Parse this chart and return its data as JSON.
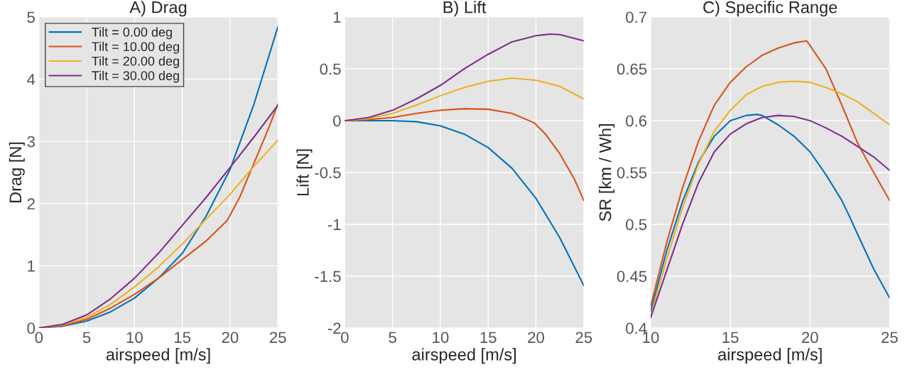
{
  "chart_data": [
    {
      "type": "line",
      "title": "A) Drag",
      "xlabel": "airspeed [m/s]",
      "ylabel": "Drag [N]",
      "xlim": [
        0,
        25
      ],
      "ylim": [
        0,
        5
      ],
      "xticks": [
        0,
        5,
        10,
        15,
        20,
        25
      ],
      "yticks": [
        0,
        1,
        2,
        3,
        4,
        5
      ],
      "grid": true,
      "legend": "top left",
      "line_style": "solid",
      "marker": "none",
      "series": [
        {
          "name": "Tilt = 0.00 deg",
          "color": "#0072bd",
          "x": [
            0,
            2.5,
            5,
            7.5,
            10,
            12.5,
            15,
            17.5,
            20,
            22.5,
            25
          ],
          "values": [
            0,
            0.03,
            0.11,
            0.26,
            0.48,
            0.8,
            1.2,
            1.8,
            2.55,
            3.6,
            4.84
          ]
        },
        {
          "name": "Tilt = 10.00 deg",
          "color": "#d95319",
          "x": [
            0,
            2.5,
            5,
            7.5,
            10,
            12.5,
            15,
            17.5,
            19.7,
            21,
            22.5,
            24,
            25
          ],
          "values": [
            0,
            0.04,
            0.14,
            0.32,
            0.54,
            0.8,
            1.1,
            1.4,
            1.73,
            2.1,
            2.65,
            3.2,
            3.6
          ]
        },
        {
          "name": "Tilt = 20.00 deg",
          "color": "#edb120",
          "x": [
            0,
            2.5,
            5,
            7.5,
            10,
            12.5,
            15,
            17.5,
            20,
            22.5,
            25
          ],
          "values": [
            0,
            0.05,
            0.17,
            0.38,
            0.66,
            0.98,
            1.35,
            1.75,
            2.15,
            2.6,
            3.02
          ]
        },
        {
          "name": "Tilt = 30.00 deg",
          "color": "#7e2f8e",
          "x": [
            0,
            2.5,
            5,
            7.5,
            10,
            12.5,
            15,
            17.5,
            20,
            22.5,
            25
          ],
          "values": [
            0,
            0.06,
            0.21,
            0.47,
            0.8,
            1.2,
            1.65,
            2.1,
            2.58,
            3.07,
            3.58
          ]
        }
      ]
    },
    {
      "type": "line",
      "title": "B) Lift",
      "xlabel": "airspeed [m/s]",
      "ylabel": "Lift [N]",
      "xlim": [
        0,
        25
      ],
      "ylim": [
        -2,
        1
      ],
      "xticks": [
        0,
        5,
        10,
        15,
        20,
        25
      ],
      "yticks": [
        -2,
        -1.5,
        -1,
        -0.5,
        0,
        0.5,
        1
      ],
      "grid": true,
      "line_style": "solid",
      "marker": "none",
      "series": [
        {
          "color": "#0072bd",
          "x": [
            0,
            2.5,
            5,
            7.5,
            10,
            12.5,
            15,
            17.5,
            20,
            22.5,
            25
          ],
          "values": [
            0,
            0,
            0,
            -0.01,
            -0.05,
            -0.13,
            -0.26,
            -0.46,
            -0.75,
            -1.13,
            -1.59
          ]
        },
        {
          "color": "#d95319",
          "x": [
            0,
            2.5,
            5,
            7.5,
            10,
            12.5,
            15,
            17.5,
            19.8,
            21,
            22.5,
            24,
            25
          ],
          "values": [
            0,
            0.01,
            0.03,
            0.07,
            0.1,
            0.115,
            0.11,
            0.07,
            -0.02,
            -0.13,
            -0.32,
            -0.56,
            -0.77
          ]
        },
        {
          "color": "#edb120",
          "x": [
            0,
            2.5,
            5,
            7.5,
            10,
            12.5,
            15,
            17.5,
            20,
            22.5,
            25
          ],
          "values": [
            0,
            0.02,
            0.07,
            0.15,
            0.24,
            0.32,
            0.38,
            0.41,
            0.39,
            0.33,
            0.21
          ]
        },
        {
          "color": "#7e2f8e",
          "x": [
            0,
            2.5,
            5,
            7.5,
            10,
            12.5,
            15,
            17.5,
            20,
            21.5,
            22.5,
            25
          ],
          "values": [
            0,
            0.03,
            0.1,
            0.21,
            0.34,
            0.5,
            0.64,
            0.76,
            0.82,
            0.835,
            0.83,
            0.77
          ]
        }
      ]
    },
    {
      "type": "line",
      "title": "C) Specific Range",
      "xlabel": "airspeed [m/s]",
      "ylabel": "SR [km / Wh]",
      "xlim": [
        10,
        25
      ],
      "ylim": [
        0.4,
        0.7
      ],
      "xticks": [
        10,
        15,
        20,
        25
      ],
      "yticks": [
        0.4,
        0.45,
        0.5,
        0.55,
        0.6,
        0.65,
        0.7
      ],
      "grid": true,
      "line_style": "solid",
      "marker": "none",
      "series": [
        {
          "color": "#0072bd",
          "x": [
            10,
            11,
            12,
            13,
            14,
            15,
            16,
            16.7,
            17,
            18,
            19,
            20,
            21,
            22,
            22.5,
            23,
            24,
            25
          ],
          "values": [
            0.416,
            0.474,
            0.522,
            0.56,
            0.585,
            0.6,
            0.605,
            0.606,
            0.605,
            0.596,
            0.585,
            0.57,
            0.548,
            0.523,
            0.507,
            0.49,
            0.457,
            0.429
          ]
        },
        {
          "color": "#d95319",
          "x": [
            10,
            11,
            12,
            13,
            14,
            15,
            16,
            17,
            18,
            19,
            19.8,
            21,
            22,
            23,
            24,
            25
          ],
          "values": [
            0.421,
            0.482,
            0.535,
            0.58,
            0.615,
            0.637,
            0.652,
            0.663,
            0.67,
            0.675,
            0.677,
            0.65,
            0.615,
            0.578,
            0.55,
            0.523
          ]
        },
        {
          "color": "#edb120",
          "x": [
            10,
            11,
            12,
            13,
            14,
            15,
            16,
            17,
            18,
            19,
            20,
            21,
            22,
            23,
            24,
            25
          ],
          "values": [
            0.411,
            0.466,
            0.516,
            0.558,
            0.59,
            0.61,
            0.625,
            0.633,
            0.637,
            0.638,
            0.637,
            0.632,
            0.626,
            0.618,
            0.607,
            0.596
          ]
        },
        {
          "color": "#7e2f8e",
          "x": [
            10,
            11,
            12,
            13,
            14,
            15,
            16,
            17,
            18,
            19,
            20,
            21,
            22,
            23,
            24,
            25
          ],
          "values": [
            0.41,
            0.455,
            0.5,
            0.54,
            0.57,
            0.587,
            0.597,
            0.603,
            0.605,
            0.604,
            0.6,
            0.593,
            0.585,
            0.575,
            0.565,
            0.552
          ]
        }
      ]
    }
  ]
}
